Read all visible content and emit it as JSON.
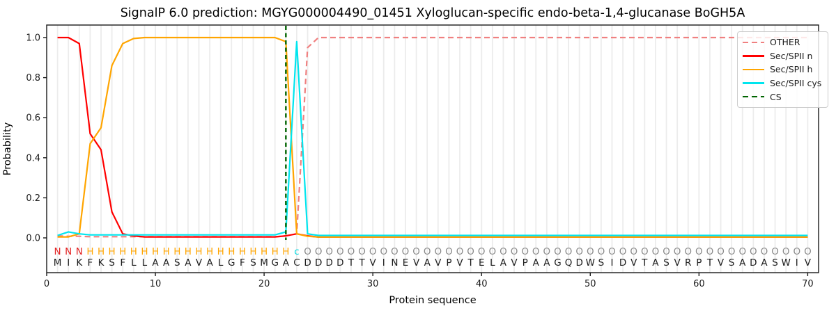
{
  "title": "SignalP 6.0 prediction: MGYG000004490_01451 Xyloglucan-specific endo-beta-1,4-glucanase BoGH5A",
  "xlabel": "Protein sequence",
  "ylabel": "Probability",
  "legend": {
    "items": [
      {
        "label": "OTHER",
        "color": "#F08080",
        "dashed": true
      },
      {
        "label": "Sec/SPII n",
        "color": "#FF0000",
        "dashed": false
      },
      {
        "label": "Sec/SPII h",
        "color": "#FFA500",
        "dashed": false
      },
      {
        "label": "Sec/SPII cys",
        "color": "#00E5EE",
        "dashed": false
      },
      {
        "label": "CS",
        "color": "#006400",
        "dashed": true
      }
    ]
  },
  "colors": {
    "grid": "#ececec",
    "spine": "#1a1a1a",
    "sequence_text": "#1c1c1c",
    "annotation_N": "#e32222",
    "annotation_H": "#FFA500",
    "annotation_c": "#00d9e0",
    "annotation_O": "#8a8a8a"
  },
  "chart_data": {
    "type": "line",
    "title": "SignalP 6.0 prediction: MGYG000004490_01451 Xyloglucan-specific endo-beta-1,4-glucanase BoGH5A",
    "xlabel": "Protein sequence",
    "ylabel": "Probability",
    "xlim": [
      0,
      71
    ],
    "ylim": [
      -0.17,
      1.06
    ],
    "x_ticks": [
      0,
      10,
      20,
      30,
      40,
      50,
      60,
      70
    ],
    "y_ticks": [
      0.0,
      0.2,
      0.4,
      0.6,
      0.8,
      1.0
    ],
    "x_start": 1,
    "x_end": 70,
    "grid": "vertical-per-residue",
    "legend_position": "upper right",
    "residues": "MIKFKSFLLAASAVALGFSMGACDDDDTTVINEVAVPVTELAVPAAGQDWSIDVTASVRPTVSADASWIV",
    "region_labels": "NNNHHHHHHHHHHHHHHHHHHHcOOOOOOOOOOOOOOOOOOOOOOOOOOOOOOOOOOOOOOOOOOOOOOO",
    "cs_line": {
      "name": "CS",
      "position": 22,
      "color": "#006400",
      "dashed": true
    },
    "series": [
      {
        "name": "OTHER",
        "color": "#F08080",
        "dashed": true,
        "values": [
          0.01,
          0.008,
          0.008,
          0.006,
          0.006,
          0.006,
          0.006,
          0.006,
          0.006,
          0.006,
          0.006,
          0.006,
          0.006,
          0.006,
          0.006,
          0.006,
          0.006,
          0.006,
          0.006,
          0.006,
          0.006,
          0.01,
          0.02,
          0.95,
          1.0,
          1.0,
          1.0,
          1.0,
          1.0,
          1.0,
          1.0,
          1.0,
          1.0,
          1.0,
          1.0,
          1.0,
          1.0,
          1.0,
          1.0,
          1.0,
          1.0,
          1.0,
          1.0,
          1.0,
          1.0,
          1.0,
          1.0,
          1.0,
          1.0,
          1.0,
          1.0,
          1.0,
          1.0,
          1.0,
          1.0,
          1.0,
          1.0,
          1.0,
          1.0,
          1.0,
          1.0,
          1.0,
          1.0,
          1.0,
          1.0,
          1.0,
          1.0,
          1.0,
          1.0,
          1.0
        ]
      },
      {
        "name": "Sec/SPII n",
        "color": "#FF0000",
        "dashed": false,
        "values": [
          1.0,
          1.0,
          0.97,
          0.52,
          0.44,
          0.13,
          0.02,
          0.01,
          0.005,
          0.005,
          0.005,
          0.005,
          0.005,
          0.005,
          0.005,
          0.005,
          0.005,
          0.005,
          0.005,
          0.005,
          0.005,
          0.01,
          0.02,
          0.01,
          0.004,
          0.004,
          0.004,
          0.004,
          0.004,
          0.004,
          0.004,
          0.004,
          0.004,
          0.004,
          0.004,
          0.004,
          0.004,
          0.004,
          0.004,
          0.004,
          0.004,
          0.004,
          0.004,
          0.004,
          0.004,
          0.004,
          0.004,
          0.004,
          0.004,
          0.004,
          0.004,
          0.004,
          0.004,
          0.004,
          0.004,
          0.004,
          0.004,
          0.004,
          0.004,
          0.004,
          0.004,
          0.004,
          0.004,
          0.004,
          0.004,
          0.004,
          0.004,
          0.004,
          0.004,
          0.004
        ]
      },
      {
        "name": "Sec/SPII h",
        "color": "#FFA500",
        "dashed": false,
        "values": [
          0.005,
          0.005,
          0.02,
          0.47,
          0.55,
          0.86,
          0.97,
          0.995,
          1.0,
          1.0,
          1.0,
          1.0,
          1.0,
          1.0,
          1.0,
          1.0,
          1.0,
          1.0,
          1.0,
          1.0,
          1.0,
          0.98,
          0.02,
          0.008,
          0.004,
          0.004,
          0.004,
          0.004,
          0.004,
          0.004,
          0.004,
          0.004,
          0.004,
          0.004,
          0.004,
          0.004,
          0.004,
          0.004,
          0.004,
          0.004,
          0.004,
          0.004,
          0.004,
          0.004,
          0.004,
          0.004,
          0.004,
          0.004,
          0.004,
          0.004,
          0.004,
          0.004,
          0.004,
          0.004,
          0.004,
          0.004,
          0.004,
          0.004,
          0.004,
          0.004,
          0.004,
          0.004,
          0.004,
          0.004,
          0.004,
          0.004,
          0.004,
          0.004,
          0.004,
          0.004
        ]
      },
      {
        "name": "Sec/SPII cys",
        "color": "#00E5EE",
        "dashed": false,
        "values": [
          0.012,
          0.03,
          0.02,
          0.015,
          0.015,
          0.015,
          0.015,
          0.015,
          0.015,
          0.015,
          0.015,
          0.015,
          0.015,
          0.015,
          0.015,
          0.015,
          0.015,
          0.015,
          0.015,
          0.015,
          0.015,
          0.03,
          0.98,
          0.02,
          0.012,
          0.012,
          0.012,
          0.012,
          0.012,
          0.012,
          0.012,
          0.012,
          0.012,
          0.012,
          0.012,
          0.012,
          0.012,
          0.012,
          0.012,
          0.012,
          0.012,
          0.012,
          0.012,
          0.012,
          0.012,
          0.012,
          0.012,
          0.012,
          0.012,
          0.012,
          0.012,
          0.012,
          0.012,
          0.012,
          0.012,
          0.012,
          0.012,
          0.012,
          0.012,
          0.012,
          0.012,
          0.012,
          0.012,
          0.012,
          0.012,
          0.012,
          0.012,
          0.012,
          0.012,
          0.012
        ]
      }
    ]
  }
}
